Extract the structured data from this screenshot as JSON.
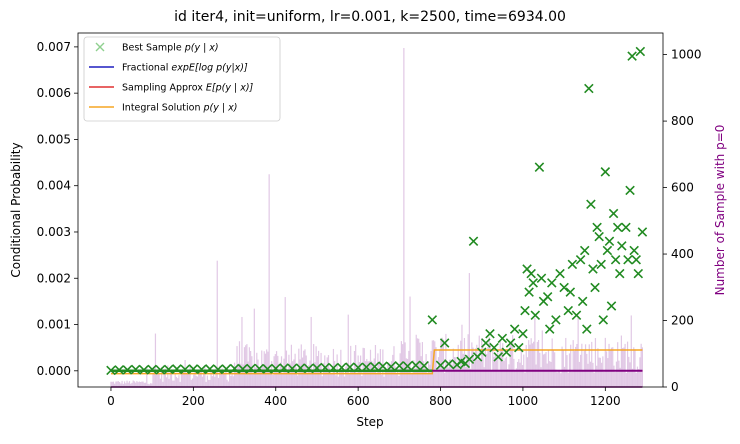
{
  "chart_data": {
    "type": "scatter",
    "title": "id iter4, init=uniform, lr=0.001, k=2500, time=6934.00",
    "xlabel": "Step",
    "ylabel": "Conditional Probability",
    "ylabel_right": "Number of Sample with p=0",
    "xlim": [
      -80,
      1340
    ],
    "ylim": [
      -0.00035,
      0.0073
    ],
    "ylim_right": [
      0,
      1065
    ],
    "x_ticks": [
      "0",
      "200",
      "400",
      "600",
      "800",
      "1000",
      "1200"
    ],
    "y_ticks": [
      "0.000",
      "0.001",
      "0.002",
      "0.003",
      "0.004",
      "0.005",
      "0.006",
      "0.007"
    ],
    "y_ticks_right": [
      "0",
      "200",
      "400",
      "600",
      "800",
      "1000"
    ],
    "legend_position": "top-left",
    "colors": {
      "best_sample": "#228b22",
      "fractional": "#1f1fbf",
      "sampling": "#e03030",
      "integral": "#f5a623",
      "zero_count": "#800080",
      "zero_count_bars": "#c89bd0"
    },
    "series": [
      {
        "name": "Best Sample $p(y \\mid x)$",
        "marker": "x",
        "points": [
          [
            0,
            1e-05
          ],
          [
            20,
            2e-05
          ],
          [
            40,
            2e-05
          ],
          [
            60,
            3e-05
          ],
          [
            80,
            2e-05
          ],
          [
            100,
            3e-05
          ],
          [
            120,
            2e-05
          ],
          [
            140,
            3e-05
          ],
          [
            160,
            4e-05
          ],
          [
            180,
            3e-05
          ],
          [
            200,
            4e-05
          ],
          [
            220,
            3e-05
          ],
          [
            240,
            4e-05
          ],
          [
            260,
            3e-05
          ],
          [
            280,
            4e-05
          ],
          [
            300,
            5e-05
          ],
          [
            320,
            4e-05
          ],
          [
            340,
            5e-05
          ],
          [
            360,
            5e-05
          ],
          [
            380,
            4e-05
          ],
          [
            400,
            5e-05
          ],
          [
            420,
            6e-05
          ],
          [
            440,
            5e-05
          ],
          [
            460,
            6e-05
          ],
          [
            480,
            5e-05
          ],
          [
            500,
            6e-05
          ],
          [
            520,
            7e-05
          ],
          [
            540,
            6e-05
          ],
          [
            560,
            7e-05
          ],
          [
            580,
            8e-05
          ],
          [
            600,
            7e-05
          ],
          [
            620,
            8e-05
          ],
          [
            640,
            9e-05
          ],
          [
            660,
            0.0001
          ],
          [
            680,
            9e-05
          ],
          [
            700,
            0.00011
          ],
          [
            720,
            0.0001
          ],
          [
            740,
            0.00012
          ],
          [
            760,
            0.00011
          ],
          [
            780,
            0.0011
          ],
          [
            800,
            0.00012
          ],
          [
            810,
            0.0006
          ],
          [
            820,
            0.00015
          ],
          [
            840,
            0.00013
          ],
          [
            850,
            0.0002
          ],
          [
            860,
            0.00016
          ],
          [
            870,
            0.00025
          ],
          [
            880,
            0.0028
          ],
          [
            890,
            0.0003
          ],
          [
            900,
            0.0004
          ],
          [
            910,
            0.0006
          ],
          [
            920,
            0.0008
          ],
          [
            930,
            0.0005
          ],
          [
            940,
            0.0003
          ],
          [
            950,
            0.0007
          ],
          [
            960,
            0.0004
          ],
          [
            970,
            0.0006
          ],
          [
            980,
            0.0009
          ],
          [
            990,
            0.0005
          ],
          [
            1000,
            0.0008
          ],
          [
            1005,
            0.0013
          ],
          [
            1010,
            0.0022
          ],
          [
            1015,
            0.0017
          ],
          [
            1020,
            0.0021
          ],
          [
            1025,
            0.0019
          ],
          [
            1030,
            0.0012
          ],
          [
            1040,
            0.0044
          ],
          [
            1045,
            0.002
          ],
          [
            1050,
            0.0015
          ],
          [
            1060,
            0.0016
          ],
          [
            1065,
            0.0009
          ],
          [
            1070,
            0.0019
          ],
          [
            1080,
            0.0011
          ],
          [
            1090,
            0.0021
          ],
          [
            1100,
            0.0018
          ],
          [
            1110,
            0.0013
          ],
          [
            1115,
            0.0017
          ],
          [
            1120,
            0.0023
          ],
          [
            1130,
            0.0012
          ],
          [
            1140,
            0.0024
          ],
          [
            1145,
            0.0015
          ],
          [
            1150,
            0.0026
          ],
          [
            1155,
            0.0009
          ],
          [
            1160,
            0.0061
          ],
          [
            1165,
            0.0036
          ],
          [
            1170,
            0.0022
          ],
          [
            1175,
            0.0018
          ],
          [
            1180,
            0.0031
          ],
          [
            1185,
            0.0029
          ],
          [
            1190,
            0.0023
          ],
          [
            1195,
            0.0011
          ],
          [
            1200,
            0.0043
          ],
          [
            1205,
            0.0026
          ],
          [
            1210,
            0.0028
          ],
          [
            1215,
            0.0014
          ],
          [
            1220,
            0.0034
          ],
          [
            1225,
            0.0024
          ],
          [
            1230,
            0.0031
          ],
          [
            1235,
            0.0021
          ],
          [
            1240,
            0.0027
          ],
          [
            1250,
            0.0031
          ],
          [
            1255,
            0.0024
          ],
          [
            1260,
            0.0039
          ],
          [
            1265,
            0.0068
          ],
          [
            1270,
            0.0026
          ],
          [
            1275,
            0.0024
          ],
          [
            1280,
            0.0021
          ],
          [
            1285,
            0.0069
          ],
          [
            1290,
            0.003
          ]
        ]
      },
      {
        "name": "Fractional $\\exp\\mathbb{E}[\\log p(y|x)]$",
        "line": [
          [
            0,
            0.0
          ],
          [
            1290,
            0.0
          ]
        ]
      },
      {
        "name": "Sampling Approx $E[p(y \\mid x)]$",
        "line": [
          [
            0,
            0.0
          ],
          [
            1290,
            0.0
          ]
        ]
      },
      {
        "name": "Integral Solution $p(y \\mid x)$",
        "line": [
          [
            0,
            -6e-05
          ],
          [
            780,
            -6e-05
          ],
          [
            785,
            0.00045
          ],
          [
            1290,
            0.00045
          ]
        ]
      },
      {
        "name": "Number of Sample with p=0",
        "axis": "right",
        "line": [
          [
            0,
            0
          ],
          [
            1290,
            0
          ]
        ]
      }
    ],
    "annotations": [
      "$p(y \\mid x)$",
      "$\\exp\\mathbb{E}[\\log p(y|x)]$",
      "$E[p(y \\mid x)]$"
    ]
  }
}
